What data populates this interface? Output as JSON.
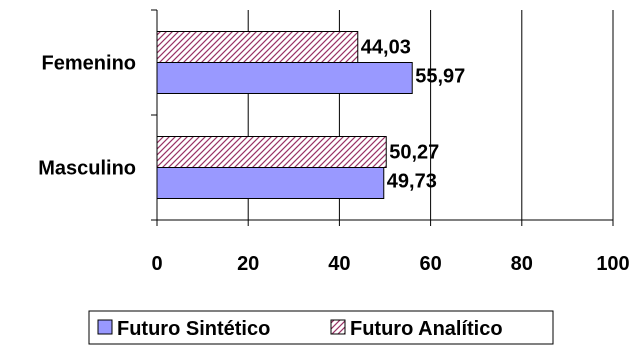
{
  "chart_data": {
    "type": "bar",
    "orientation": "horizontal",
    "categories": [
      "Femenino",
      "Masculino"
    ],
    "series": [
      {
        "name": "Futuro Analítico",
        "values": [
          44.03,
          50.27
        ],
        "value_labels": [
          "44,03",
          "50,27"
        ],
        "color": "#993366",
        "pattern": "diagonal-hatch"
      },
      {
        "name": "Futuro Sintético",
        "values": [
          55.97,
          49.73
        ],
        "value_labels": [
          "55,97",
          "49,73"
        ],
        "color": "#9999ff",
        "pattern": "solid"
      }
    ],
    "xlim": [
      0,
      100
    ],
    "x_ticks": [
      0,
      20,
      40,
      60,
      80,
      100
    ],
    "x_tick_labels": [
      "0",
      "20",
      "40",
      "60",
      "80",
      "100"
    ],
    "title": "",
    "xlabel": "",
    "ylabel": "",
    "grid": "vertical",
    "legend": {
      "position": "bottom",
      "entries": [
        "Futuro Sintético",
        "Futuro Analítico"
      ]
    }
  }
}
